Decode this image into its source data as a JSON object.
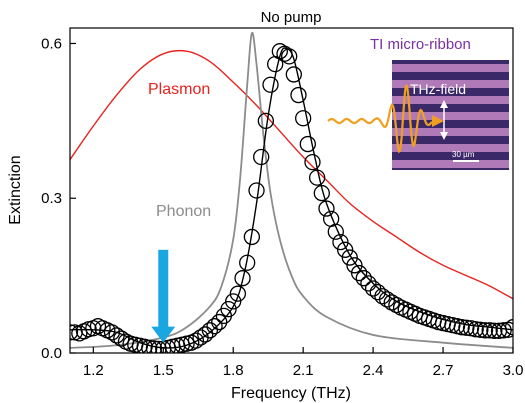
{
  "chart_data": {
    "type": "line",
    "title": "No pump",
    "xlabel": "Frequency (THz)",
    "ylabel": "Extinction",
    "xlim": [
      1.1,
      3.0
    ],
    "ylim": [
      0.0,
      0.63
    ],
    "xticks": [
      1.2,
      1.5,
      1.8,
      2.1,
      2.4,
      2.7,
      3.0
    ],
    "xtick_labels": [
      "1.2",
      "1.5",
      "1.8",
      "2.1",
      "2.4",
      "2.7",
      "3.0"
    ],
    "yticks": [
      0.0,
      0.3,
      0.6
    ],
    "ytick_labels": [
      "0.0",
      "0.3",
      "0.6"
    ],
    "series": [
      {
        "name": "Plasmon",
        "color": "#e8231f",
        "style": "line",
        "x": [
          1.1,
          1.2,
          1.3,
          1.4,
          1.5,
          1.6,
          1.7,
          1.8,
          1.9,
          2.0,
          2.1,
          2.2,
          2.3,
          2.4,
          2.5,
          2.6,
          2.7,
          2.8,
          2.9,
          3.0
        ],
        "values": [
          0.375,
          0.44,
          0.5,
          0.55,
          0.58,
          0.585,
          0.565,
          0.525,
          0.48,
          0.43,
          0.38,
          0.335,
          0.29,
          0.255,
          0.225,
          0.195,
          0.17,
          0.15,
          0.13,
          0.105
        ]
      },
      {
        "name": "Phonon",
        "color": "#8c8c8c",
        "style": "line",
        "x": [
          1.1,
          1.3,
          1.5,
          1.6,
          1.7,
          1.75,
          1.8,
          1.83,
          1.86,
          1.88,
          1.9,
          1.93,
          1.96,
          2.0,
          2.05,
          2.1,
          2.2,
          2.4,
          2.7,
          3.0
        ],
        "values": [
          0.01,
          0.015,
          0.03,
          0.05,
          0.09,
          0.13,
          0.22,
          0.34,
          0.52,
          0.62,
          0.56,
          0.42,
          0.31,
          0.22,
          0.15,
          0.11,
          0.07,
          0.035,
          0.02,
          0.01
        ]
      },
      {
        "name": "",
        "color": "#000000",
        "style": "line",
        "x": [
          1.1,
          1.2,
          1.3,
          1.4,
          1.5,
          1.6,
          1.7,
          1.8,
          1.85,
          1.9,
          1.95,
          2.0,
          2.03,
          2.06,
          2.1,
          2.15,
          2.2,
          2.3,
          2.4,
          2.5,
          2.6,
          2.7,
          2.8,
          2.9,
          3.0
        ],
        "values": [
          0.045,
          0.045,
          0.04,
          0.02,
          0.01,
          0.015,
          0.04,
          0.09,
          0.16,
          0.29,
          0.46,
          0.575,
          0.59,
          0.57,
          0.49,
          0.38,
          0.29,
          0.19,
          0.135,
          0.1,
          0.08,
          0.065,
          0.055,
          0.05,
          0.045
        ]
      },
      {
        "name": "",
        "color": "#000000",
        "style": "markers",
        "x": [
          1.1,
          1.12,
          1.14,
          1.16,
          1.18,
          1.2,
          1.22,
          1.24,
          1.26,
          1.28,
          1.3,
          1.32,
          1.34,
          1.36,
          1.38,
          1.4,
          1.42,
          1.44,
          1.46,
          1.48,
          1.5,
          1.52,
          1.54,
          1.56,
          1.58,
          1.6,
          1.62,
          1.64,
          1.66,
          1.68,
          1.7,
          1.72,
          1.74,
          1.76,
          1.78,
          1.8,
          1.82,
          1.84,
          1.86,
          1.88,
          1.9,
          1.92,
          1.94,
          1.96,
          1.98,
          2.0,
          2.02,
          2.04,
          2.06,
          2.08,
          2.1,
          2.12,
          2.14,
          2.16,
          2.18,
          2.2,
          2.22,
          2.24,
          2.26,
          2.28,
          2.3,
          2.32,
          2.34,
          2.36,
          2.38,
          2.4,
          2.42,
          2.44,
          2.46,
          2.48,
          2.5,
          2.52,
          2.54,
          2.56,
          2.58,
          2.6,
          2.62,
          2.64,
          2.66,
          2.68,
          2.7,
          2.72,
          2.74,
          2.76,
          2.78,
          2.8,
          2.82,
          2.84,
          2.86,
          2.88,
          2.9,
          2.92,
          2.94,
          2.96,
          2.98,
          3.0
        ],
        "values": [
          0.04,
          0.04,
          0.038,
          0.042,
          0.046,
          0.048,
          0.052,
          0.048,
          0.044,
          0.04,
          0.034,
          0.028,
          0.022,
          0.018,
          0.016,
          0.014,
          0.012,
          0.01,
          0.009,
          0.008,
          0.008,
          0.01,
          0.012,
          0.014,
          0.016,
          0.018,
          0.02,
          0.024,
          0.03,
          0.036,
          0.044,
          0.052,
          0.06,
          0.072,
          0.085,
          0.1,
          0.115,
          0.145,
          0.175,
          0.225,
          0.315,
          0.38,
          0.45,
          0.52,
          0.56,
          0.585,
          0.58,
          0.575,
          0.54,
          0.5,
          0.455,
          0.405,
          0.37,
          0.34,
          0.31,
          0.28,
          0.26,
          0.235,
          0.215,
          0.2,
          0.185,
          0.17,
          0.155,
          0.145,
          0.135,
          0.125,
          0.118,
          0.11,
          0.104,
          0.098,
          0.093,
          0.088,
          0.084,
          0.08,
          0.076,
          0.072,
          0.069,
          0.066,
          0.063,
          0.06,
          0.058,
          0.056,
          0.054,
          0.052,
          0.05,
          0.049,
          0.048,
          0.046,
          0.045,
          0.044,
          0.044,
          0.043,
          0.043,
          0.044,
          0.045,
          0.05
        ]
      }
    ],
    "annotations": {
      "plasmon_label": "Plasmon",
      "phonon_label": "Phonon",
      "plasmon_color": "#e8231f",
      "phonon_color": "#8c8c8c",
      "arrow": {
        "x": 1.5,
        "y_tip": 0.02,
        "y_tail": 0.2,
        "color": "#1aa7e0"
      },
      "inset": {
        "title": "TI micro-ribbon",
        "title_color": "#7b2fa3",
        "field_label": "THz-field",
        "scale_label": "30 µm",
        "stripe_colors": [
          "#b07ab8",
          "#3a2868"
        ],
        "wave_color": "#f0a020"
      }
    },
    "grid": false,
    "legend": "none"
  }
}
